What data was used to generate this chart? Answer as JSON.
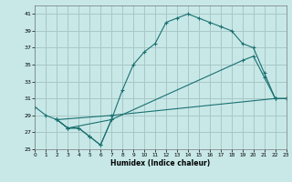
{
  "xlabel": "Humidex (Indice chaleur)",
  "bg_color": "#c8e8e8",
  "grid_color": "#a8c8c8",
  "line_color": "#1a7070",
  "xlim": [
    0,
    23
  ],
  "ylim": [
    25,
    42
  ],
  "yticks": [
    25,
    27,
    29,
    31,
    33,
    35,
    37,
    39,
    41
  ],
  "xticks": [
    0,
    1,
    2,
    3,
    4,
    5,
    6,
    7,
    8,
    9,
    10,
    11,
    12,
    13,
    14,
    15,
    16,
    17,
    18,
    19,
    20,
    21,
    22,
    23
  ],
  "line1_x": [
    0,
    1,
    2,
    3,
    4,
    5,
    6,
    7
  ],
  "line1_y": [
    30,
    29,
    28.5,
    27.5,
    27.5,
    26.5,
    25.5,
    28.5
  ],
  "line2_x": [
    2,
    3,
    4,
    5,
    6,
    7,
    8,
    9,
    10,
    11,
    12,
    13,
    14,
    15,
    16,
    17,
    18,
    19,
    20,
    21,
    22
  ],
  "line2_y": [
    28.5,
    27.5,
    27.5,
    26.5,
    25.5,
    28.5,
    32,
    35,
    36.5,
    37.5,
    40,
    40.5,
    41,
    40.5,
    40,
    39.5,
    39,
    37.5,
    37,
    34,
    31
  ],
  "line3_x": [
    2,
    3,
    7,
    19,
    20,
    21,
    22,
    23
  ],
  "line3_y": [
    28.5,
    27.5,
    28.5,
    35.5,
    36,
    33.5,
    31,
    31
  ],
  "line4_x": [
    2,
    7,
    22,
    23
  ],
  "line4_y": [
    28.5,
    29,
    31,
    31
  ]
}
